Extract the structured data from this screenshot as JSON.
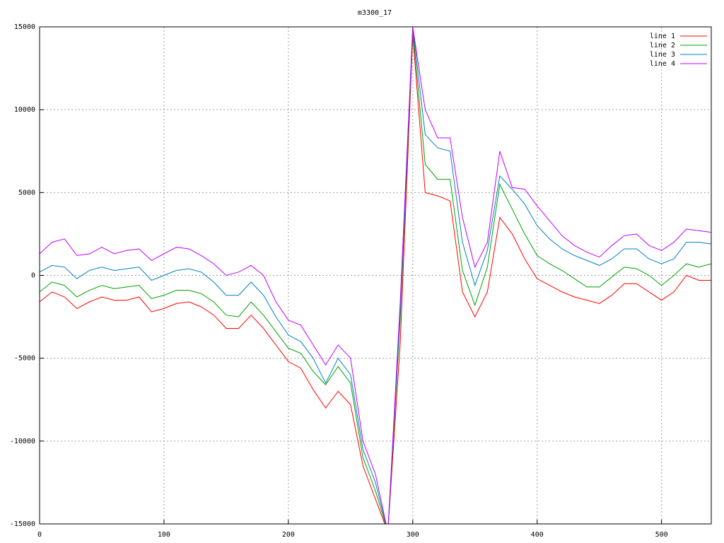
{
  "chart_data": {
    "type": "line",
    "title": "m3300_17",
    "x": [
      0,
      10,
      20,
      30,
      40,
      50,
      60,
      70,
      80,
      90,
      100,
      110,
      120,
      130,
      140,
      150,
      160,
      170,
      180,
      190,
      200,
      210,
      220,
      230,
      240,
      250,
      260,
      270,
      280,
      290,
      300,
      310,
      320,
      330,
      340,
      350,
      360,
      370,
      380,
      390,
      400,
      410,
      420,
      430,
      440,
      450,
      460,
      470,
      480,
      490,
      500,
      510,
      520,
      530,
      540
    ],
    "series": [
      {
        "name": "line 1",
        "color": "#ff0000",
        "values": [
          -1600,
          -1000,
          -1300,
          -2000,
          -1600,
          -1300,
          -1500,
          -1500,
          -1300,
          -2200,
          -2000,
          -1700,
          -1600,
          -1900,
          -2400,
          -3200,
          -3200,
          -2400,
          -3200,
          -4200,
          -5200,
          -5600,
          -6900,
          -8000,
          -7000,
          -7800,
          -11500,
          -13500,
          -15500,
          -4000,
          14500,
          5000,
          4800,
          4500,
          -1000,
          -2500,
          -1000,
          3500,
          2500,
          1000,
          -200,
          -600,
          -1000,
          -1300,
          -1500,
          -1700,
          -1200,
          -500,
          -500,
          -1000,
          -1500,
          -1000,
          0,
          -300,
          -300
        ]
      },
      {
        "name": "line 2",
        "color": "#00a000",
        "values": [
          -1000,
          -400,
          -600,
          -1300,
          -900,
          -600,
          -800,
          -700,
          -600,
          -1400,
          -1200,
          -900,
          -900,
          -1100,
          -1600,
          -2400,
          -2500,
          -1600,
          -2400,
          -3400,
          -4400,
          -4700,
          -5800,
          -6600,
          -5500,
          -6500,
          -11000,
          -13000,
          -15500,
          -2500,
          14800,
          6700,
          5800,
          5800,
          300,
          -1800,
          500,
          5500,
          4000,
          2500,
          1200,
          700,
          300,
          -200,
          -700,
          -700,
          -100,
          500,
          400,
          0,
          -600,
          0,
          700,
          500,
          700
        ]
      },
      {
        "name": "line 3",
        "color": "#0080c0",
        "values": [
          200,
          600,
          500,
          -200,
          300,
          500,
          300,
          400,
          500,
          -300,
          0,
          300,
          400,
          200,
          -400,
          -1200,
          -1200,
          -400,
          -1200,
          -2500,
          -3600,
          -4000,
          -5000,
          -6500,
          -5000,
          -6000,
          -10500,
          -12500,
          -15500,
          -2000,
          15000,
          8500,
          7700,
          7500,
          2000,
          -600,
          1500,
          6000,
          5200,
          4300,
          3000,
          2200,
          1600,
          1200,
          900,
          600,
          1000,
          1600,
          1600,
          1000,
          700,
          1000,
          2000,
          2000,
          1900
        ]
      },
      {
        "name": "line 4",
        "color": "#c000ff",
        "values": [
          1300,
          2000,
          2200,
          1200,
          1300,
          1700,
          1300,
          1500,
          1600,
          900,
          1300,
          1700,
          1600,
          1200,
          700,
          0,
          200,
          600,
          0,
          -1600,
          -2700,
          -3000,
          -4200,
          -5400,
          -4200,
          -5000,
          -10000,
          -12000,
          -15500,
          -1500,
          15000,
          10000,
          8300,
          8300,
          3500,
          500,
          2000,
          7500,
          5300,
          5200,
          4200,
          3300,
          2400,
          1800,
          1400,
          1100,
          1800,
          2400,
          2500,
          1800,
          1500,
          2000,
          2800,
          2700,
          2600
        ]
      }
    ],
    "xlim": [
      0,
      540
    ],
    "xticks": [
      0,
      100,
      200,
      300,
      400,
      500
    ],
    "ylim": [
      -15000,
      15000
    ],
    "yticks": [
      -15000,
      -10000,
      -5000,
      0,
      5000,
      10000,
      15000
    ],
    "grid": true,
    "legend": "top-right"
  }
}
